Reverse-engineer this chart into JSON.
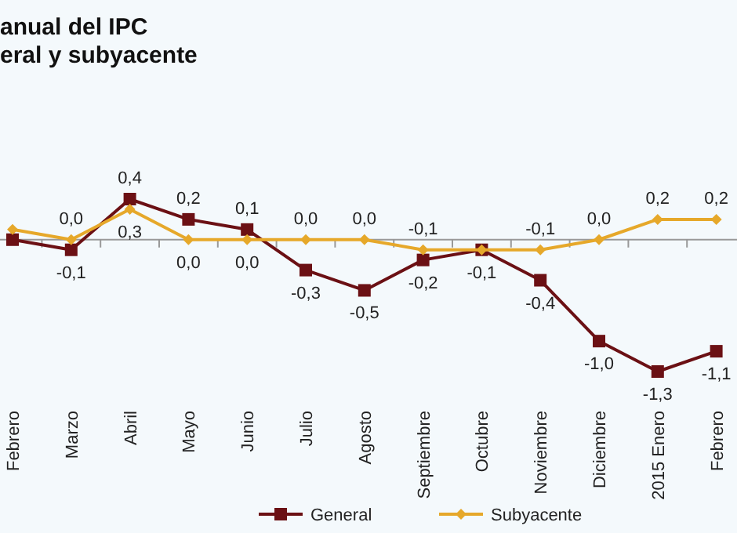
{
  "chart_data": {
    "type": "line",
    "title": "anual del IPC",
    "subtitle": "eral y subyacente",
    "categories": [
      "Febrero",
      "Marzo",
      "Abril",
      "Mayo",
      "Junio",
      "Julio",
      "Agosto",
      "Septiembre",
      "Octubre",
      "Noviembre",
      "Diciembre",
      "2015 Enero",
      "Febrero"
    ],
    "series": [
      {
        "name": "General",
        "color": "#6b1014",
        "marker": "square",
        "values": [
          0.0,
          -0.1,
          0.4,
          0.2,
          0.1,
          -0.3,
          -0.5,
          -0.2,
          -0.1,
          -0.4,
          -1.0,
          -1.3,
          -1.1
        ],
        "value_labels": [
          null,
          "-0,1",
          "0,4",
          "0,2",
          "0,1",
          "-0,3",
          "-0,5",
          "-0,2",
          "-0,1",
          "-0,4",
          "-1,0",
          "-1,3",
          "-1,1"
        ]
      },
      {
        "name": "Subyacente",
        "color": "#e6a82a",
        "marker": "diamond",
        "values": [
          0.1,
          0.0,
          0.3,
          0.0,
          0.0,
          0.0,
          0.0,
          -0.1,
          -0.1,
          -0.1,
          0.0,
          0.2,
          0.2
        ],
        "value_labels": [
          null,
          "0,0",
          "0,3",
          "0,0",
          "0,0",
          "0,0",
          "0,0",
          "-0,1",
          null,
          "-0,1",
          "0,0",
          "0,2",
          "0,2"
        ]
      }
    ],
    "legend": "bottom"
  }
}
